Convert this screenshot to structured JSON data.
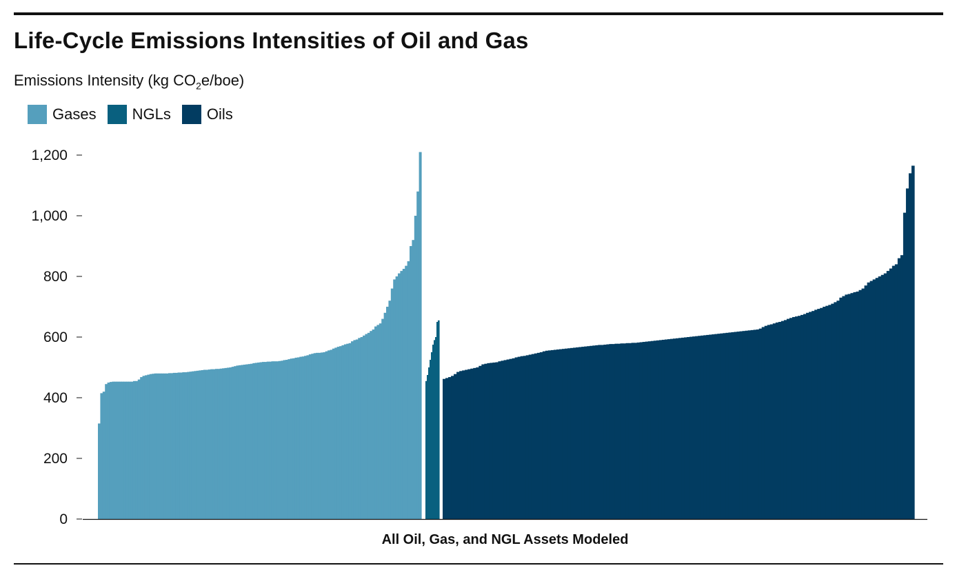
{
  "chart_data": {
    "type": "bar",
    "title": "Life-Cycle Emissions Intensities of Oil and Gas",
    "ylabel": "Emissions Intensity (kg CO2e/boe)",
    "xlabel": "All Oil, Gas, and NGL Assets Modeled",
    "ylim": [
      0,
      1200
    ],
    "yticks": [
      0,
      200,
      400,
      600,
      800,
      1000,
      1200
    ],
    "ytick_labels": [
      "0",
      "200",
      "400",
      "600",
      "800",
      "1,000",
      "1,200"
    ],
    "legend": [
      "Gases",
      "NGLs",
      "Oils"
    ],
    "legend_placement": "top-left",
    "grid": false,
    "series": [
      {
        "name": "Gases",
        "color": "#559fbd",
        "values": [
          315,
          415,
          420,
          445,
          450,
          452,
          453,
          453,
          453,
          453,
          453,
          453,
          453,
          453,
          453,
          455,
          455,
          460,
          468,
          472,
          474,
          476,
          478,
          479,
          480,
          480,
          480,
          480,
          480,
          480,
          481,
          481,
          482,
          482,
          483,
          483,
          484,
          484,
          485,
          486,
          487,
          488,
          489,
          490,
          491,
          492,
          492,
          493,
          494,
          494,
          495,
          495,
          496,
          497,
          498,
          499,
          500,
          502,
          504,
          506,
          507,
          508,
          509,
          510,
          511,
          512,
          514,
          515,
          516,
          517,
          518,
          518,
          519,
          519,
          520,
          520,
          520,
          521,
          522,
          524,
          525,
          527,
          529,
          530,
          532,
          533,
          535,
          536,
          538,
          540,
          543,
          545,
          547,
          548,
          548,
          549,
          550,
          553,
          556,
          558,
          562,
          565,
          568,
          570,
          573,
          576,
          578,
          580,
          586,
          590,
          592,
          597,
          600,
          605,
          610,
          614,
          620,
          625,
          635,
          640,
          645,
          660,
          680,
          700,
          720,
          760,
          790,
          800,
          810,
          818,
          825,
          835,
          850,
          900,
          920,
          1000,
          1080,
          1210
        ]
      },
      {
        "name": "NGLs",
        "color": "#09607f",
        "values": [
          455,
          475,
          500,
          525,
          550,
          575,
          590,
          600,
          650,
          655
        ]
      },
      {
        "name": "Oils",
        "color": "#023c61",
        "values": [
          462,
          465,
          468,
          472,
          478,
          485,
          488,
          490,
          492,
          494,
          496,
          498,
          500,
          505,
          510,
          512,
          514,
          515,
          516,
          517,
          520,
          522,
          524,
          526,
          528,
          530,
          533,
          535,
          537,
          538,
          540,
          542,
          544,
          546,
          548,
          550,
          553,
          555,
          556,
          557,
          558,
          559,
          560,
          561,
          562,
          563,
          564,
          565,
          566,
          567,
          568,
          569,
          570,
          571,
          572,
          573,
          574,
          574,
          575,
          576,
          577,
          577,
          578,
          578,
          579,
          579,
          580,
          580,
          581,
          581,
          582,
          583,
          584,
          585,
          586,
          587,
          588,
          589,
          590,
          591,
          592,
          593,
          594,
          595,
          596,
          597,
          598,
          599,
          600,
          601,
          602,
          603,
          604,
          605,
          606,
          607,
          608,
          609,
          610,
          611,
          612,
          613,
          614,
          615,
          616,
          617,
          618,
          619,
          620,
          621,
          622,
          623,
          624,
          625,
          628,
          633,
          637,
          640,
          642,
          645,
          648,
          650,
          653,
          656,
          660,
          663,
          666,
          668,
          670,
          673,
          676,
          680,
          683,
          686,
          690,
          693,
          696,
          700,
          703,
          706,
          710,
          715,
          720,
          730,
          735,
          740,
          742,
          745,
          748,
          750,
          755,
          760,
          770,
          780,
          785,
          790,
          795,
          800,
          805,
          810,
          818,
          826,
          835,
          840,
          860,
          870,
          1010,
          1090,
          1140,
          1165
        ]
      }
    ]
  }
}
